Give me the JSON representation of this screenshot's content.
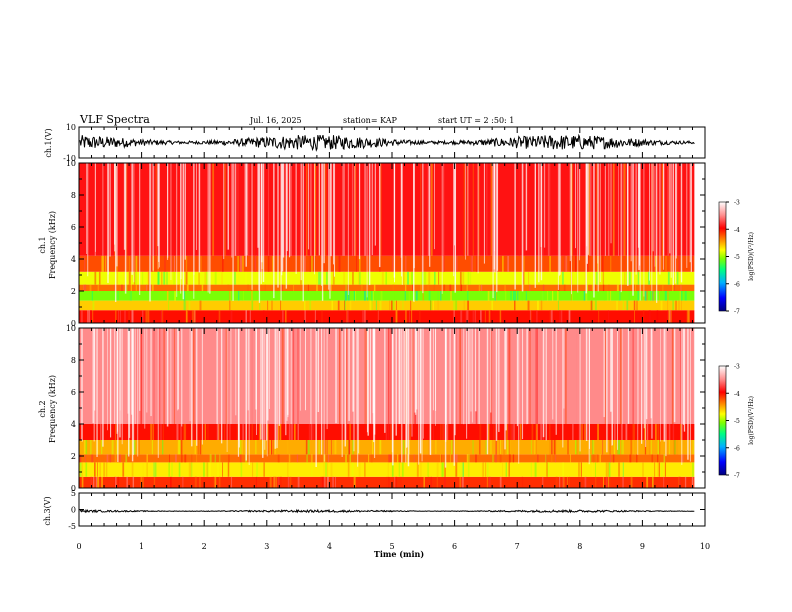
{
  "chart_data": {
    "type": "heatmap",
    "header": {
      "title": "VLF Spectra",
      "date": "Jul. 16, 2025",
      "station": "station= KAP",
      "start": "start UT =  2 :50: 1"
    },
    "x_axis": {
      "label": "Time (min)",
      "range": [
        0,
        10
      ],
      "ticks": [
        "0",
        "1",
        "2",
        "3",
        "4",
        "5",
        "6",
        "7",
        "8",
        "9",
        "10"
      ]
    },
    "data_end_min": 9.83,
    "panels": [
      {
        "id": "ch1_wave",
        "kind": "waveform",
        "ylabel": "ch.1(V)",
        "ylim": [
          -10,
          10
        ],
        "ticks": [
          "10",
          "-10"
        ],
        "tick_values": [
          10,
          -10
        ],
        "mean_level": 0,
        "amplitude": 5
      },
      {
        "id": "ch1_spec",
        "kind": "spectrogram",
        "ylabel": [
          "ch.1",
          "Frequency (kHz)"
        ],
        "ylim": [
          0,
          10
        ],
        "ticks": [
          "0",
          "2",
          "4",
          "6",
          "8",
          "10"
        ],
        "tick_values": [
          0,
          2,
          4,
          6,
          8,
          10
        ],
        "bands": [
          {
            "from_khz": 0.0,
            "to_khz": 0.8,
            "level": -4.0
          },
          {
            "from_khz": 0.8,
            "to_khz": 1.4,
            "level": -4.6
          },
          {
            "from_khz": 1.4,
            "to_khz": 2.0,
            "level": -5.1
          },
          {
            "from_khz": 2.0,
            "to_khz": 2.4,
            "level": -4.3
          },
          {
            "from_khz": 2.4,
            "to_khz": 3.2,
            "level": -4.8
          },
          {
            "from_khz": 3.2,
            "to_khz": 4.2,
            "level": -4.2
          },
          {
            "from_khz": 4.2,
            "to_khz": 10.0,
            "level": -3.9
          }
        ]
      },
      {
        "id": "ch2_spec",
        "kind": "spectrogram",
        "ylabel": [
          "ch.2",
          "Frequency (kHz)"
        ],
        "ylim": [
          0,
          10
        ],
        "ticks": [
          "0",
          "2",
          "4",
          "6",
          "8",
          "10"
        ],
        "tick_values": [
          0,
          2,
          4,
          6,
          8,
          10
        ],
        "bands": [
          {
            "from_khz": 0.0,
            "to_khz": 0.7,
            "level": -4.1
          },
          {
            "from_khz": 0.7,
            "to_khz": 1.6,
            "level": -4.7
          },
          {
            "from_khz": 1.6,
            "to_khz": 2.1,
            "level": -4.3
          },
          {
            "from_khz": 2.1,
            "to_khz": 3.0,
            "level": -4.5
          },
          {
            "from_khz": 3.0,
            "to_khz": 4.0,
            "level": -4.0
          },
          {
            "from_khz": 4.0,
            "to_khz": 10.0,
            "level": -3.5
          }
        ]
      },
      {
        "id": "ch3_wave",
        "kind": "waveform",
        "ylabel": "ch.3(V)",
        "ylim": [
          -5,
          5
        ],
        "ticks": [
          "5",
          "0",
          "-5"
        ],
        "tick_values": [
          5,
          0,
          -5
        ],
        "mean_level": -0.5,
        "amplitude": 0.35
      }
    ],
    "colorbar": {
      "label": "log(PSD)(V²/Hz)",
      "range": [
        -7,
        -3
      ],
      "ticks": [
        "-3",
        "-4",
        "-5",
        "-6",
        "-7"
      ],
      "tick_values": [
        -3,
        -4,
        -5,
        -6,
        -7
      ],
      "colors": [
        "#000080",
        "#0000ff",
        "#00b0ff",
        "#00ff80",
        "#80ff00",
        "#ffff00",
        "#ff8000",
        "#ff0000",
        "#ffffff"
      ]
    }
  }
}
